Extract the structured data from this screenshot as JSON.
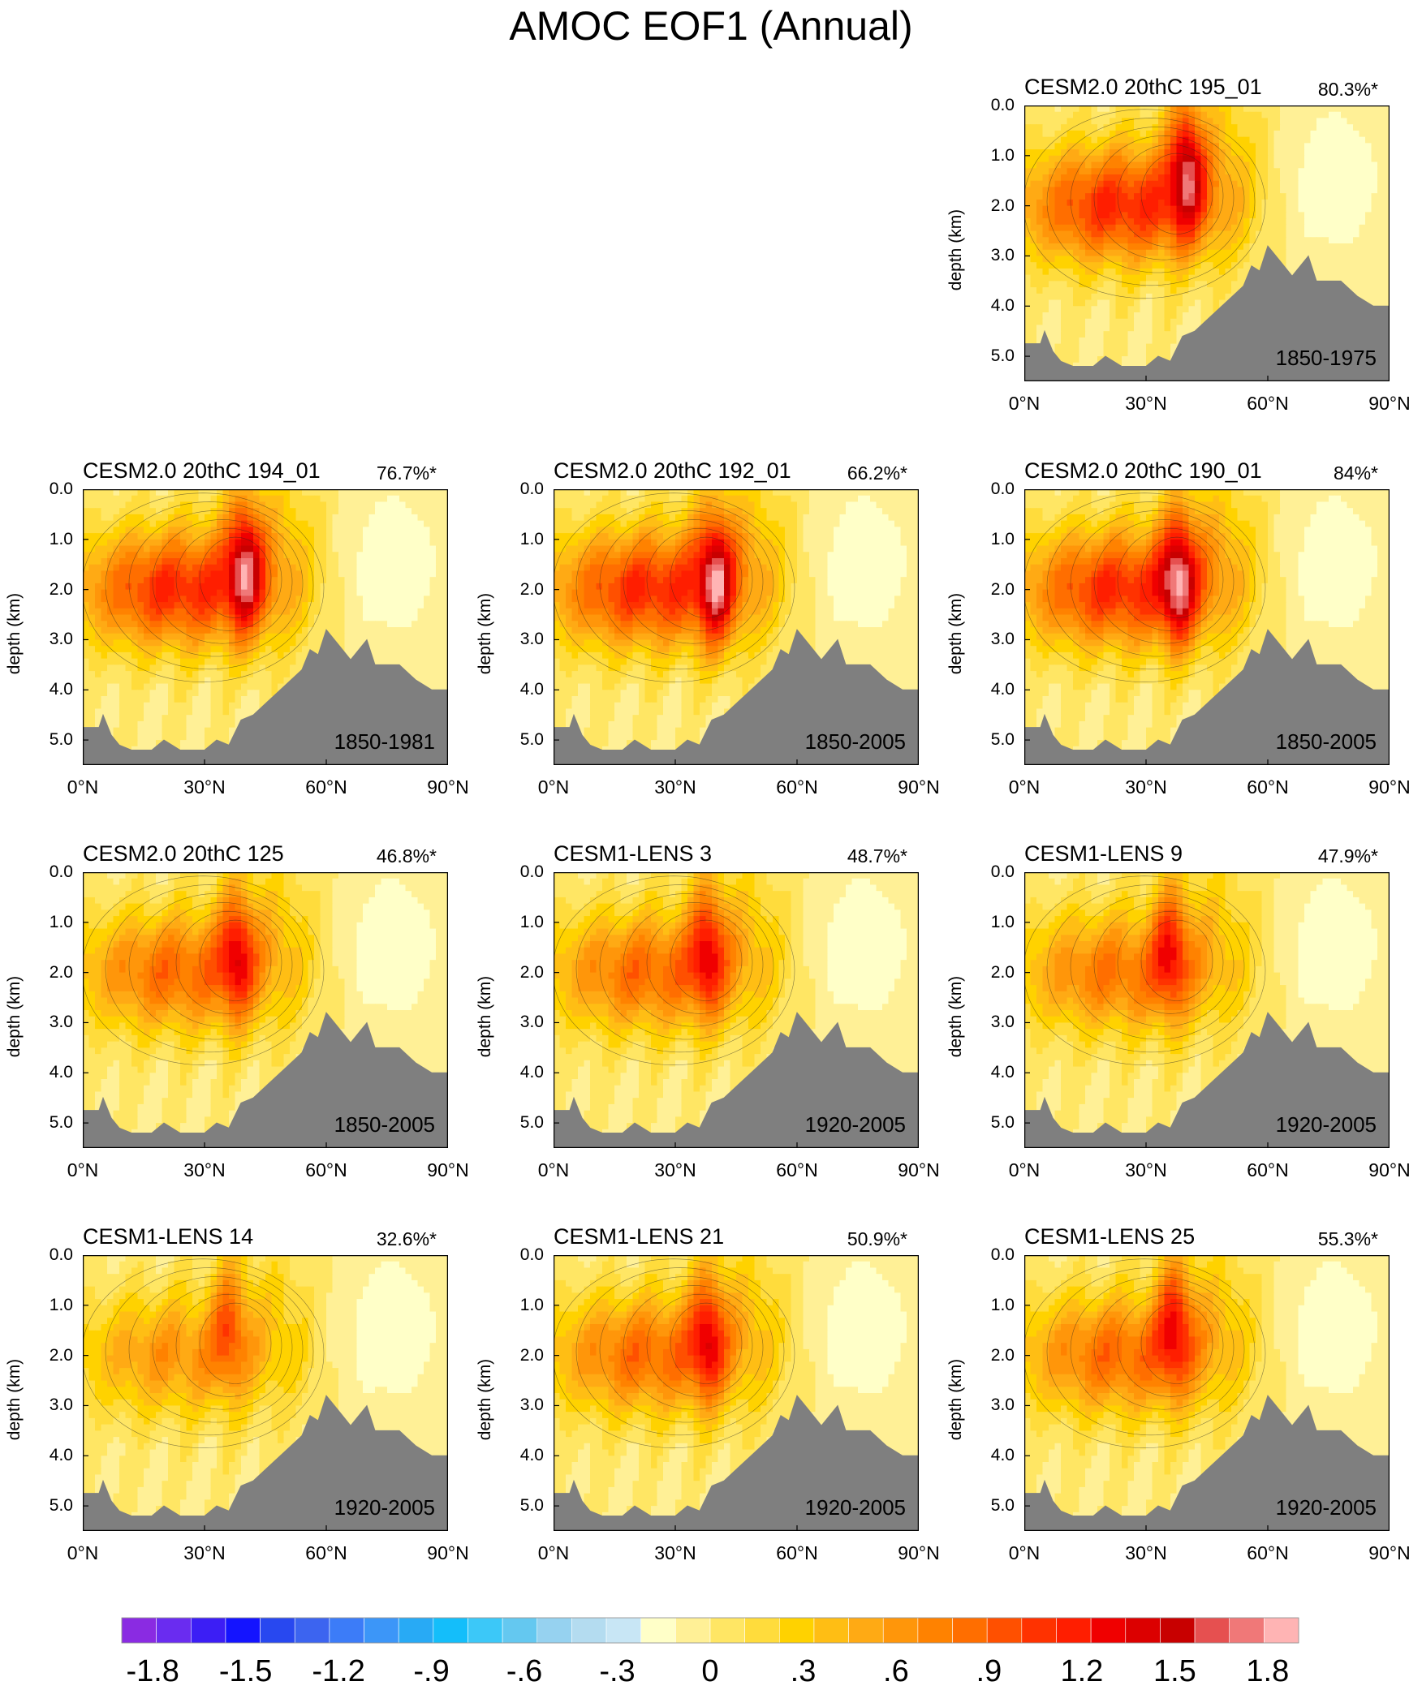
{
  "title": "AMOC EOF1 (Annual)",
  "y_axis_label": "depth (km)",
  "y_ticks": [
    "0.0",
    "1.0",
    "2.0",
    "3.0",
    "4.0",
    "5.0"
  ],
  "x_ticks": [
    "0°N",
    "30°N",
    "60°N",
    "90°N"
  ],
  "panels": [
    {
      "name": "CESM2.0 20thC 195_01",
      "variance": "80.3%*",
      "period": "1850-1975"
    },
    {
      "name": "CESM2.0 20thC 194_01",
      "variance": "76.7%*",
      "period": "1850-1981"
    },
    {
      "name": "CESM2.0 20thC 192_01",
      "variance": "66.2%*",
      "period": "1850-2005"
    },
    {
      "name": "CESM2.0 20thC 190_01",
      "variance": "84%*",
      "period": "1850-2005"
    },
    {
      "name": "CESM2.0 20thC 125",
      "variance": "46.8%*",
      "period": "1850-2005"
    },
    {
      "name": "CESM1-LENS 3",
      "variance": "48.7%*",
      "period": "1920-2005"
    },
    {
      "name": "CESM1-LENS 9",
      "variance": "47.9%*",
      "period": "1920-2005"
    },
    {
      "name": "CESM1-LENS 14",
      "variance": "32.6%*",
      "period": "1920-2005"
    },
    {
      "name": "CESM1-LENS 21",
      "variance": "50.9%*",
      "period": "1920-2005"
    },
    {
      "name": "CESM1-LENS 25",
      "variance": "55.3%*",
      "period": "1920-2005"
    }
  ],
  "colorbar": {
    "labels": [
      "-1.8",
      "-1.5",
      "-1.2",
      "-.9",
      "-.6",
      "-.3",
      "0",
      ".3",
      ".6",
      ".9",
      "1.2",
      "1.5",
      "1.8"
    ],
    "colors": [
      "#8a2be2",
      "#6a2cf0",
      "#3c1ef5",
      "#1414ff",
      "#2848f0",
      "#3c64f0",
      "#3c7cf8",
      "#3c96f8",
      "#28aaf5",
      "#14befa",
      "#3cc8f8",
      "#64c8f0",
      "#96d2f0",
      "#b4dcf0",
      "#c8e6f5",
      "#ffffc8",
      "#fff096",
      "#ffe664",
      "#ffdc3c",
      "#ffd200",
      "#ffbe14",
      "#ffaa14",
      "#ff960a",
      "#ff8200",
      "#ff6e00",
      "#ff5000",
      "#ff3200",
      "#ff1e00",
      "#f00000",
      "#dc0000",
      "#c80000",
      "#e65050",
      "#f07878",
      "#ffb4b4"
    ],
    "range": [
      -1.9,
      1.9
    ]
  },
  "chart_data": {
    "type": "heatmap",
    "title": "AMOC EOF1 (Annual)",
    "xlabel": "",
    "ylabel": "depth (km)",
    "xlim": [
      0,
      90
    ],
    "ylim": [
      5.5,
      0
    ],
    "x_ticks": [
      0,
      30,
      60,
      90
    ],
    "y_ticks": [
      0,
      1,
      2,
      3,
      4,
      5
    ],
    "panel_order": [
      "CESM2.0 20thC 195_01",
      "CESM2.0 20thC 194_01",
      "CESM2.0 20thC 192_01",
      "CESM2.0 20thC 190_01",
      "CESM2.0 20thC 125",
      "CESM1-LENS 3",
      "CESM1-LENS 9",
      "CESM1-LENS 14",
      "CESM1-LENS 21",
      "CESM1-LENS 25"
    ],
    "explained_variance_pct": [
      80.3,
      76.7,
      66.2,
      84,
      46.8,
      48.7,
      47.9,
      32.6,
      50.9,
      55.3
    ],
    "peak_value_approx": [
      2.0,
      2.0,
      2.0,
      2.0,
      1.5,
      1.5,
      1.4,
      1.1,
      1.5,
      1.5
    ],
    "peak_lat_approx": [
      40,
      40,
      40,
      38,
      38,
      38,
      36,
      36,
      38,
      37
    ],
    "peak_depth_km_approx": [
      1.2,
      1.5,
      1.8,
      1.8,
      1.6,
      1.5,
      1.5,
      1.3,
      1.6,
      1.3
    ],
    "contour_interval": 0.1
  }
}
